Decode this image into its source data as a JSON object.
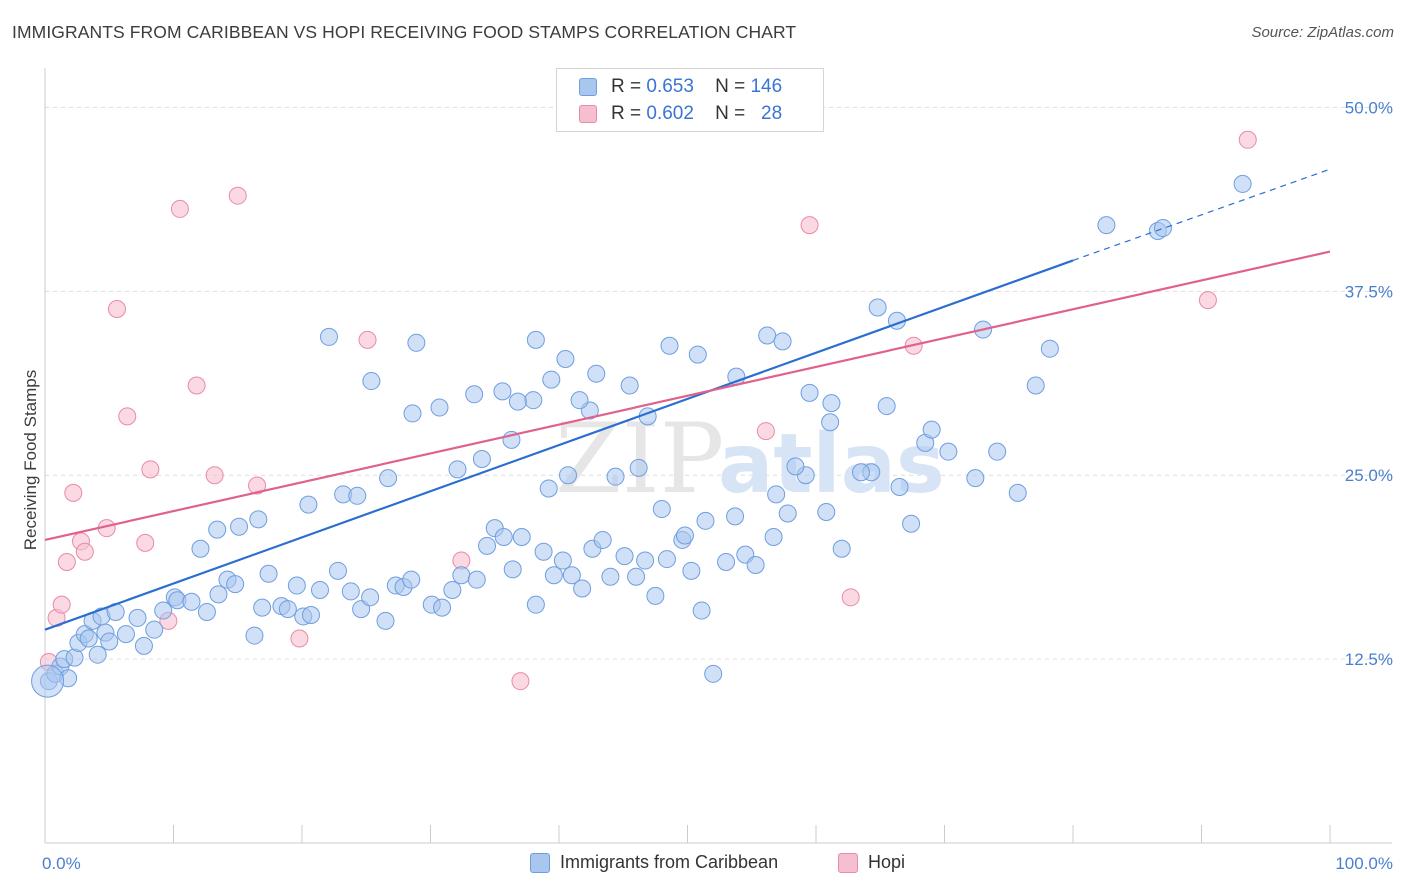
{
  "header": {
    "title": "IMMIGRANTS FROM CARIBBEAN VS HOPI RECEIVING FOOD STAMPS CORRELATION CHART",
    "source": "Source: ZipAtlas.com"
  },
  "watermark": {
    "zip": "ZIP",
    "atlas": "atlas"
  },
  "legend": {
    "rows": [
      {
        "r_label": "R =",
        "r_value": "0.653",
        "n_label": "N =",
        "n_value": "146"
      },
      {
        "r_label": "R =",
        "r_value": "0.602",
        "n_label": "N =",
        "n_value": "28"
      }
    ]
  },
  "bottom_legend": {
    "series1": "Immigrants from Caribbean",
    "series2": "Hopi"
  },
  "colors": {
    "blue_fill": "#a9c6ef",
    "blue_stroke": "#6f9ee0",
    "blue_line": "#2a6fd0",
    "pink_fill": "#f6bfcf",
    "pink_stroke": "#ea8aa6",
    "pink_line": "#e0628c",
    "grid": "#dddddd",
    "tick_text": "#4a7fd0"
  },
  "chart_data": {
    "type": "scatter",
    "title": "IMMIGRANTS FROM CARIBBEAN VS HOPI RECEIVING FOOD STAMPS CORRELATION CHART",
    "xlabel": "",
    "ylabel": "Receiving Food Stamps",
    "xlim": [
      0,
      100
    ],
    "ylim": [
      0,
      50
    ],
    "x_tick_labels": [
      "0.0%",
      "100.0%"
    ],
    "y_ticks": [
      12.5,
      25.0,
      37.5,
      50.0
    ],
    "y_tick_labels": [
      "12.5%",
      "25.0%",
      "37.5%",
      "50.0%"
    ],
    "grid": true,
    "series": [
      {
        "name": "Immigrants from Caribbean",
        "R": 0.653,
        "N": 146,
        "trend": {
          "x0": 0,
          "y0": 14.5,
          "x1": 80,
          "y1": 39.6,
          "dashed_to_x": 100,
          "dashed_to_y": 45.8
        },
        "points": [
          [
            0.3,
            11.0
          ],
          [
            0.8,
            11.5
          ],
          [
            1.2,
            12.0
          ],
          [
            1.5,
            12.5
          ],
          [
            1.8,
            11.2
          ],
          [
            2.3,
            12.6
          ],
          [
            2.6,
            13.6
          ],
          [
            3.1,
            14.2
          ],
          [
            3.4,
            13.9
          ],
          [
            3.7,
            15.1
          ],
          [
            4.1,
            12.8
          ],
          [
            4.4,
            15.4
          ],
          [
            4.7,
            14.3
          ],
          [
            5.0,
            13.7
          ],
          [
            5.5,
            15.7
          ],
          [
            6.3,
            14.2
          ],
          [
            7.2,
            15.3
          ],
          [
            7.7,
            13.4
          ],
          [
            8.5,
            14.5
          ],
          [
            9.2,
            15.8
          ],
          [
            10.1,
            16.7
          ],
          [
            10.3,
            16.5
          ],
          [
            11.4,
            16.4
          ],
          [
            12.6,
            15.7
          ],
          [
            13.5,
            16.9
          ],
          [
            14.2,
            17.9
          ],
          [
            14.8,
            17.6
          ],
          [
            16.3,
            14.1
          ],
          [
            16.9,
            16.0
          ],
          [
            17.4,
            18.3
          ],
          [
            18.4,
            16.1
          ],
          [
            18.9,
            15.9
          ],
          [
            19.6,
            17.5
          ],
          [
            20.1,
            15.4
          ],
          [
            20.7,
            15.5
          ],
          [
            21.4,
            17.2
          ],
          [
            22.8,
            18.5
          ],
          [
            23.8,
            17.1
          ],
          [
            24.6,
            15.9
          ],
          [
            25.3,
            16.7
          ],
          [
            26.5,
            15.1
          ],
          [
            27.3,
            17.5
          ],
          [
            27.9,
            17.4
          ],
          [
            28.5,
            17.9
          ],
          [
            30.1,
            16.2
          ],
          [
            30.9,
            16.0
          ],
          [
            31.7,
            17.2
          ],
          [
            32.4,
            18.2
          ],
          [
            33.6,
            17.9
          ],
          [
            34.4,
            20.2
          ],
          [
            35.0,
            21.4
          ],
          [
            35.7,
            20.8
          ],
          [
            36.4,
            18.6
          ],
          [
            37.1,
            20.8
          ],
          [
            38.2,
            16.2
          ],
          [
            38.8,
            19.8
          ],
          [
            39.6,
            18.2
          ],
          [
            40.3,
            19.2
          ],
          [
            41.0,
            18.2
          ],
          [
            41.8,
            17.3
          ],
          [
            42.6,
            20.0
          ],
          [
            43.4,
            20.6
          ],
          [
            44.0,
            18.1
          ],
          [
            45.1,
            19.5
          ],
          [
            46.0,
            18.1
          ],
          [
            46.7,
            19.2
          ],
          [
            47.5,
            16.8
          ],
          [
            48.4,
            19.3
          ],
          [
            49.6,
            20.6
          ],
          [
            50.3,
            18.5
          ],
          [
            51.1,
            15.8
          ],
          [
            52.0,
            11.5
          ],
          [
            53.0,
            19.1
          ],
          [
            54.5,
            19.6
          ],
          [
            55.3,
            18.9
          ],
          [
            56.7,
            20.8
          ],
          [
            57.8,
            22.4
          ],
          [
            59.2,
            25.0
          ],
          [
            60.8,
            22.5
          ],
          [
            62.0,
            20.0
          ],
          [
            64.3,
            25.2
          ],
          [
            66.5,
            24.2
          ],
          [
            67.4,
            21.7
          ],
          [
            72.4,
            24.8
          ],
          [
            74.1,
            26.6
          ],
          [
            75.7,
            23.8
          ],
          [
            77.1,
            31.1
          ],
          [
            78.2,
            33.6
          ],
          [
            82.6,
            42.0
          ],
          [
            86.6,
            41.6
          ],
          [
            87.0,
            41.8
          ],
          [
            93.2,
            44.8
          ],
          [
            12.1,
            20.0
          ],
          [
            13.4,
            21.3
          ],
          [
            15.1,
            21.5
          ],
          [
            16.6,
            22.0
          ],
          [
            20.5,
            23.0
          ],
          [
            23.2,
            23.7
          ],
          [
            26.7,
            24.8
          ],
          [
            28.6,
            29.2
          ],
          [
            30.7,
            29.6
          ],
          [
            32.1,
            25.4
          ],
          [
            34.0,
            26.1
          ],
          [
            36.3,
            27.4
          ],
          [
            38.0,
            30.1
          ],
          [
            39.2,
            24.1
          ],
          [
            40.7,
            25.0
          ],
          [
            42.4,
            29.4
          ],
          [
            44.4,
            24.9
          ],
          [
            46.2,
            25.5
          ],
          [
            48.0,
            22.7
          ],
          [
            49.8,
            20.9
          ],
          [
            51.4,
            21.9
          ],
          [
            53.7,
            22.2
          ],
          [
            56.9,
            23.7
          ],
          [
            58.4,
            25.6
          ],
          [
            61.1,
            28.6
          ],
          [
            63.5,
            25.2
          ],
          [
            65.5,
            29.7
          ],
          [
            68.5,
            27.2
          ],
          [
            70.3,
            26.6
          ],
          [
            24.3,
            23.6
          ],
          [
            22.1,
            34.4
          ],
          [
            25.4,
            31.4
          ],
          [
            28.9,
            34.0
          ],
          [
            33.4,
            30.5
          ],
          [
            35.6,
            30.7
          ],
          [
            36.8,
            30.0
          ],
          [
            38.2,
            34.2
          ],
          [
            39.4,
            31.5
          ],
          [
            40.5,
            32.9
          ],
          [
            41.6,
            30.1
          ],
          [
            42.9,
            31.9
          ],
          [
            45.5,
            31.1
          ],
          [
            46.9,
            29.0
          ],
          [
            48.6,
            33.8
          ],
          [
            50.8,
            33.2
          ],
          [
            53.8,
            31.7
          ],
          [
            56.2,
            34.5
          ],
          [
            57.4,
            34.1
          ],
          [
            59.5,
            30.6
          ],
          [
            61.2,
            29.9
          ],
          [
            64.8,
            36.4
          ],
          [
            66.3,
            35.5
          ],
          [
            69.0,
            28.1
          ],
          [
            73.0,
            34.9
          ]
        ]
      },
      {
        "name": "Hopi",
        "R": 0.602,
        "N": 28,
        "trend": {
          "x0": 0,
          "y0": 20.6,
          "x1": 100,
          "y1": 40.2
        },
        "points": [
          [
            0.3,
            12.3
          ],
          [
            0.9,
            15.3
          ],
          [
            1.3,
            16.2
          ],
          [
            1.7,
            19.1
          ],
          [
            2.2,
            23.8
          ],
          [
            2.8,
            20.5
          ],
          [
            3.1,
            19.8
          ],
          [
            4.8,
            21.4
          ],
          [
            5.6,
            36.3
          ],
          [
            6.4,
            29.0
          ],
          [
            7.8,
            20.4
          ],
          [
            8.2,
            25.4
          ],
          [
            9.6,
            15.1
          ],
          [
            10.5,
            43.1
          ],
          [
            11.8,
            31.1
          ],
          [
            13.2,
            25.0
          ],
          [
            15.0,
            44.0
          ],
          [
            16.5,
            24.3
          ],
          [
            19.8,
            13.9
          ],
          [
            25.1,
            34.2
          ],
          [
            32.4,
            19.2
          ],
          [
            37.0,
            11.0
          ],
          [
            56.1,
            28.0
          ],
          [
            59.5,
            42.0
          ],
          [
            62.7,
            16.7
          ],
          [
            67.6,
            33.8
          ],
          [
            90.5,
            36.9
          ],
          [
            93.6,
            47.8
          ]
        ]
      }
    ]
  }
}
